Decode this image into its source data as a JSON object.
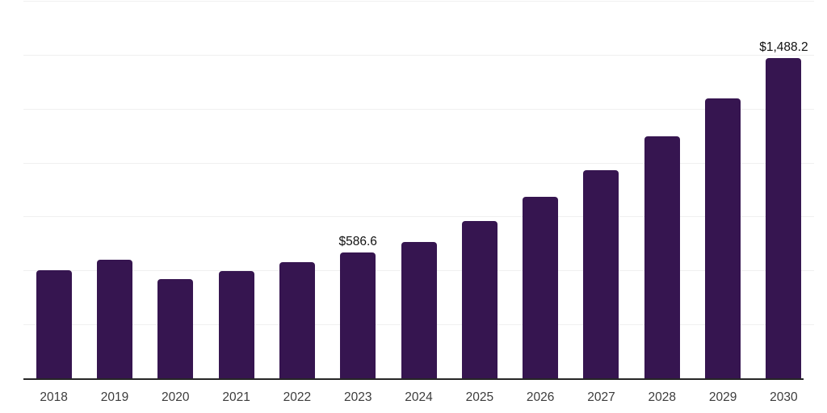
{
  "chart_data": {
    "type": "bar",
    "categories": [
      "2018",
      "2019",
      "2020",
      "2021",
      "2022",
      "2023",
      "2024",
      "2025",
      "2026",
      "2027",
      "2028",
      "2029",
      "2030"
    ],
    "values": [
      504.8,
      553.4,
      463.7,
      501.1,
      544.1,
      586.6,
      635.7,
      732.9,
      845.1,
      968.5,
      1125.5,
      1301.3,
      1488.2
    ],
    "point_labels": [
      "",
      "",
      "",
      "",
      "",
      "$586.6",
      "",
      "",
      "",
      "",
      "",
      "",
      "$1,488.2"
    ],
    "ylim": [
      0,
      1750
    ],
    "gridline_values": [
      250,
      500,
      750,
      1000,
      1250,
      1500,
      1750
    ],
    "grid": "horizontal",
    "legend": "none",
    "y_axis_tick_labels": "none",
    "colors": {
      "bar": "#361550",
      "grid": "#f0f0f0",
      "axis": "#262626",
      "tick_label": "#3c3c3c",
      "data_label": "#111111",
      "background": "#ffffff"
    }
  }
}
